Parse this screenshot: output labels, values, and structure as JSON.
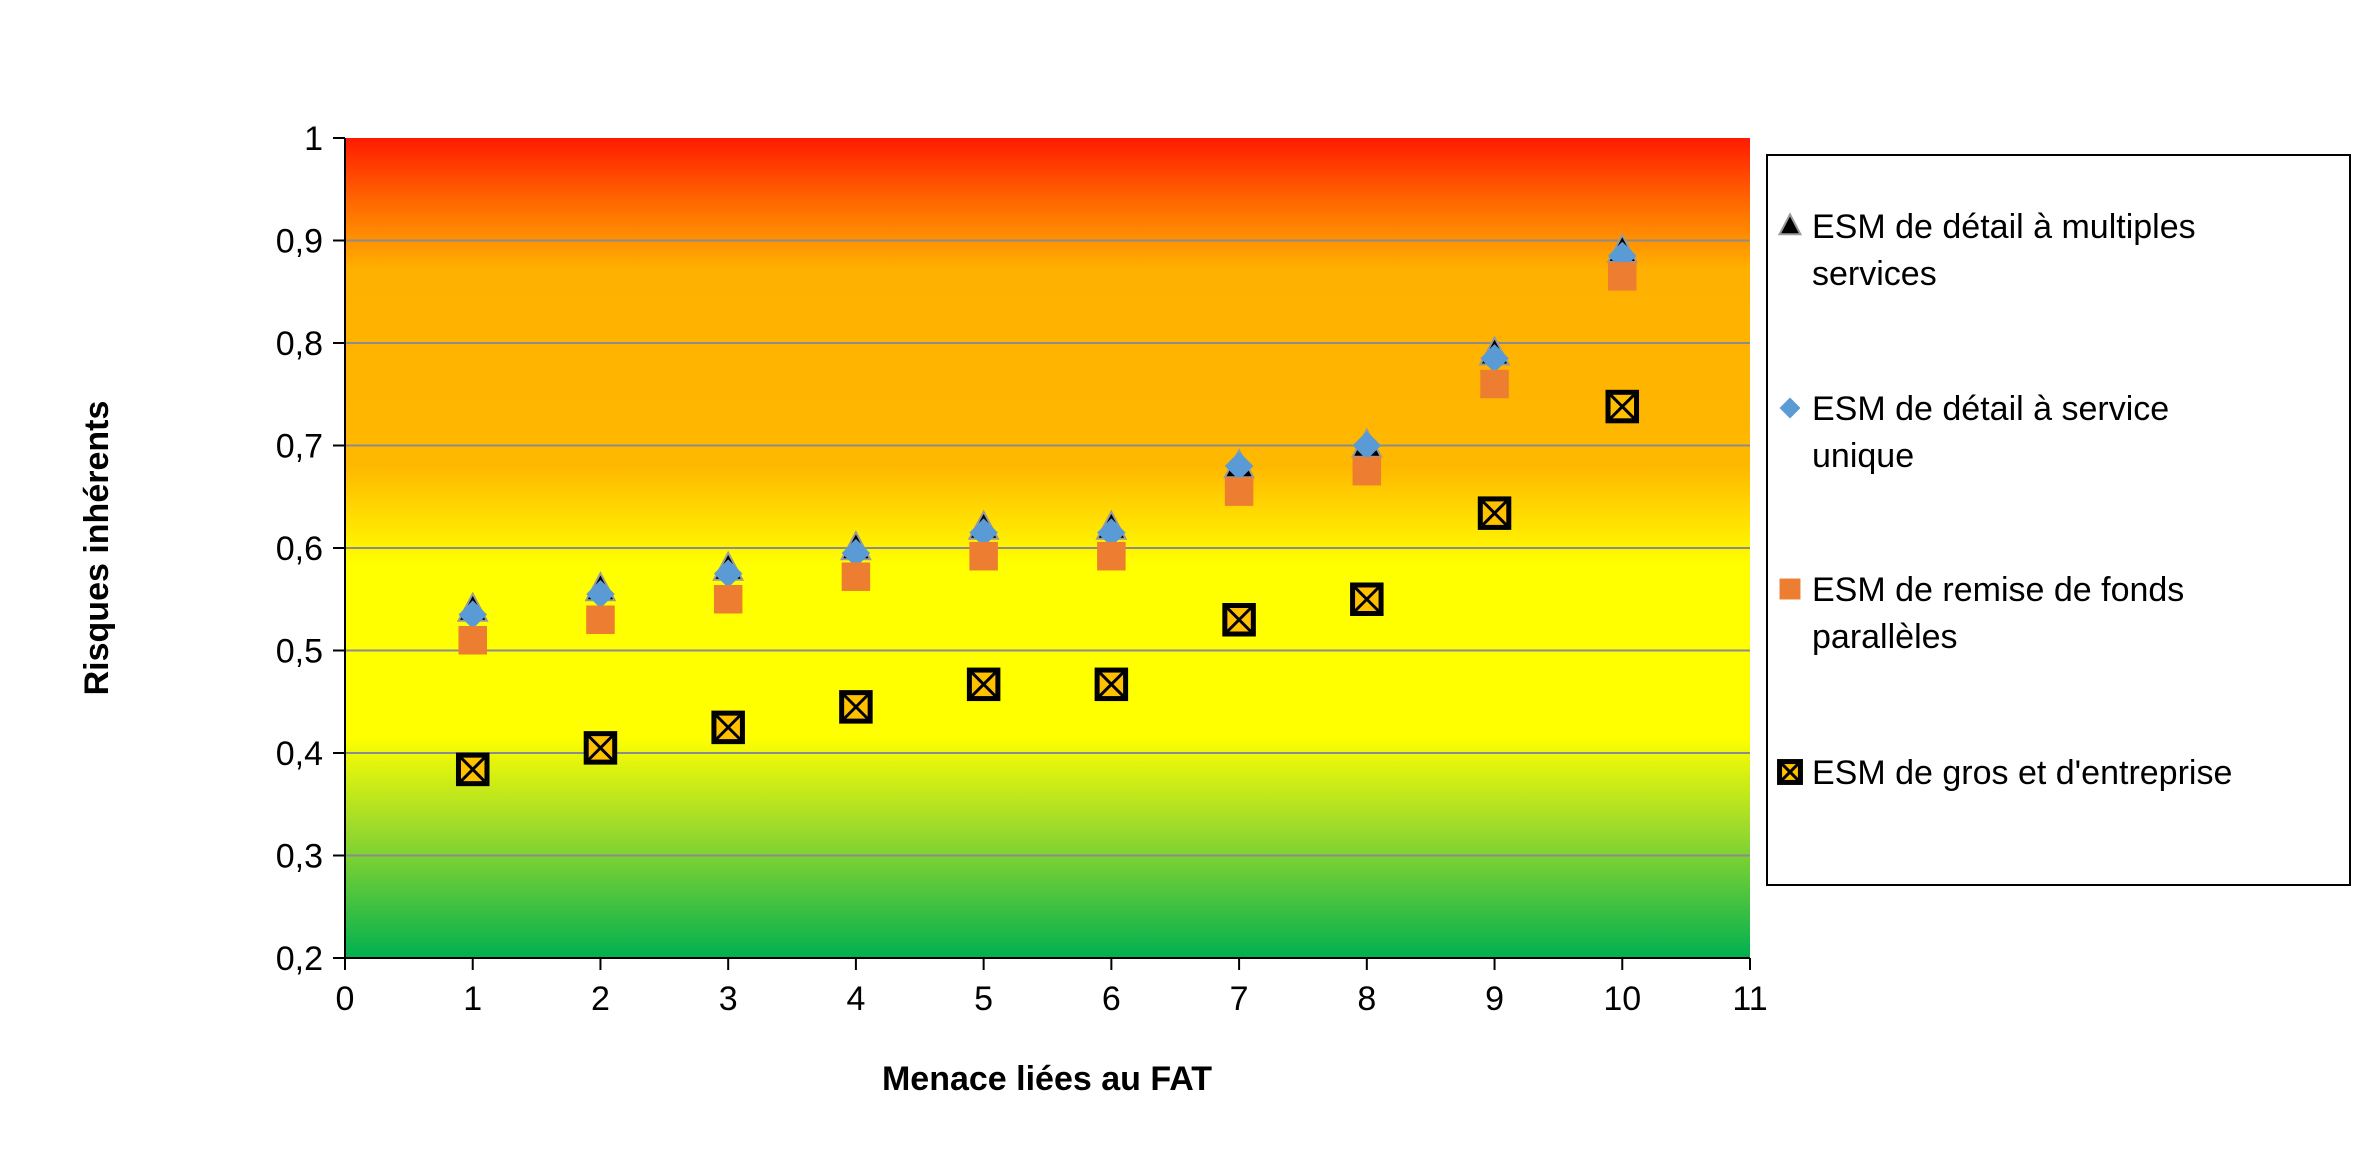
{
  "chart_data": {
    "type": "scatter",
    "title": "",
    "xlabel": "Menace liées au FAT",
    "ylabel": "Risques inhérents",
    "xlim": [
      0,
      11
    ],
    "ylim": [
      0.2,
      1
    ],
    "x_ticks": [
      "0",
      "1",
      "2",
      "3",
      "4",
      "5",
      "6",
      "7",
      "8",
      "9",
      "10",
      "11"
    ],
    "y_ticks": [
      "0,2",
      "0,3",
      "0,4",
      "0,5",
      "0,6",
      "0,7",
      "0,8",
      "0,9",
      "1"
    ],
    "grid": "horizontal",
    "legend_position": "right",
    "background": "vertical gradient red (top) to orange, yellow, green (bottom)",
    "series": [
      {
        "name": "ESM de détail à multiples services",
        "legend_lines": [
          "ESM de détail à multiples",
          "services"
        ],
        "marker": "triangle",
        "color": "#000000",
        "x": [
          1,
          2,
          3,
          4,
          5,
          6,
          7,
          8,
          9,
          10
        ],
        "y": [
          0.54,
          0.56,
          0.58,
          0.6,
          0.62,
          0.62,
          0.68,
          0.7,
          0.79,
          0.89
        ]
      },
      {
        "name": "ESM de détail à service unique",
        "legend_lines": [
          "ESM de détail à service",
          "unique"
        ],
        "marker": "diamond",
        "color": "#5B9BD5",
        "x": [
          1,
          2,
          3,
          4,
          5,
          6,
          7,
          8,
          9,
          10
        ],
        "y": [
          0.535,
          0.555,
          0.575,
          0.595,
          0.615,
          0.615,
          0.68,
          0.7,
          0.785,
          0.885
        ]
      },
      {
        "name": "ESM de remise de fonds parallèles",
        "legend_lines": [
          "ESM de remise de fonds",
          "parallèles"
        ],
        "marker": "square",
        "color": "#ED7D31",
        "x": [
          1,
          2,
          3,
          4,
          5,
          6,
          7,
          8,
          9,
          10
        ],
        "y": [
          0.51,
          0.53,
          0.55,
          0.572,
          0.592,
          0.592,
          0.655,
          0.675,
          0.76,
          0.865
        ]
      },
      {
        "name": "ESM de gros et d'entreprise",
        "legend_lines": [
          "ESM de gros et d'entreprise"
        ],
        "marker": "x-square",
        "color": "#000000",
        "fill": "#FFC000",
        "x": [
          1,
          2,
          3,
          4,
          5,
          6,
          7,
          8,
          9,
          10
        ],
        "y": [
          0.384,
          0.405,
          0.425,
          0.445,
          0.467,
          0.467,
          0.53,
          0.55,
          0.634,
          0.738
        ]
      }
    ]
  }
}
